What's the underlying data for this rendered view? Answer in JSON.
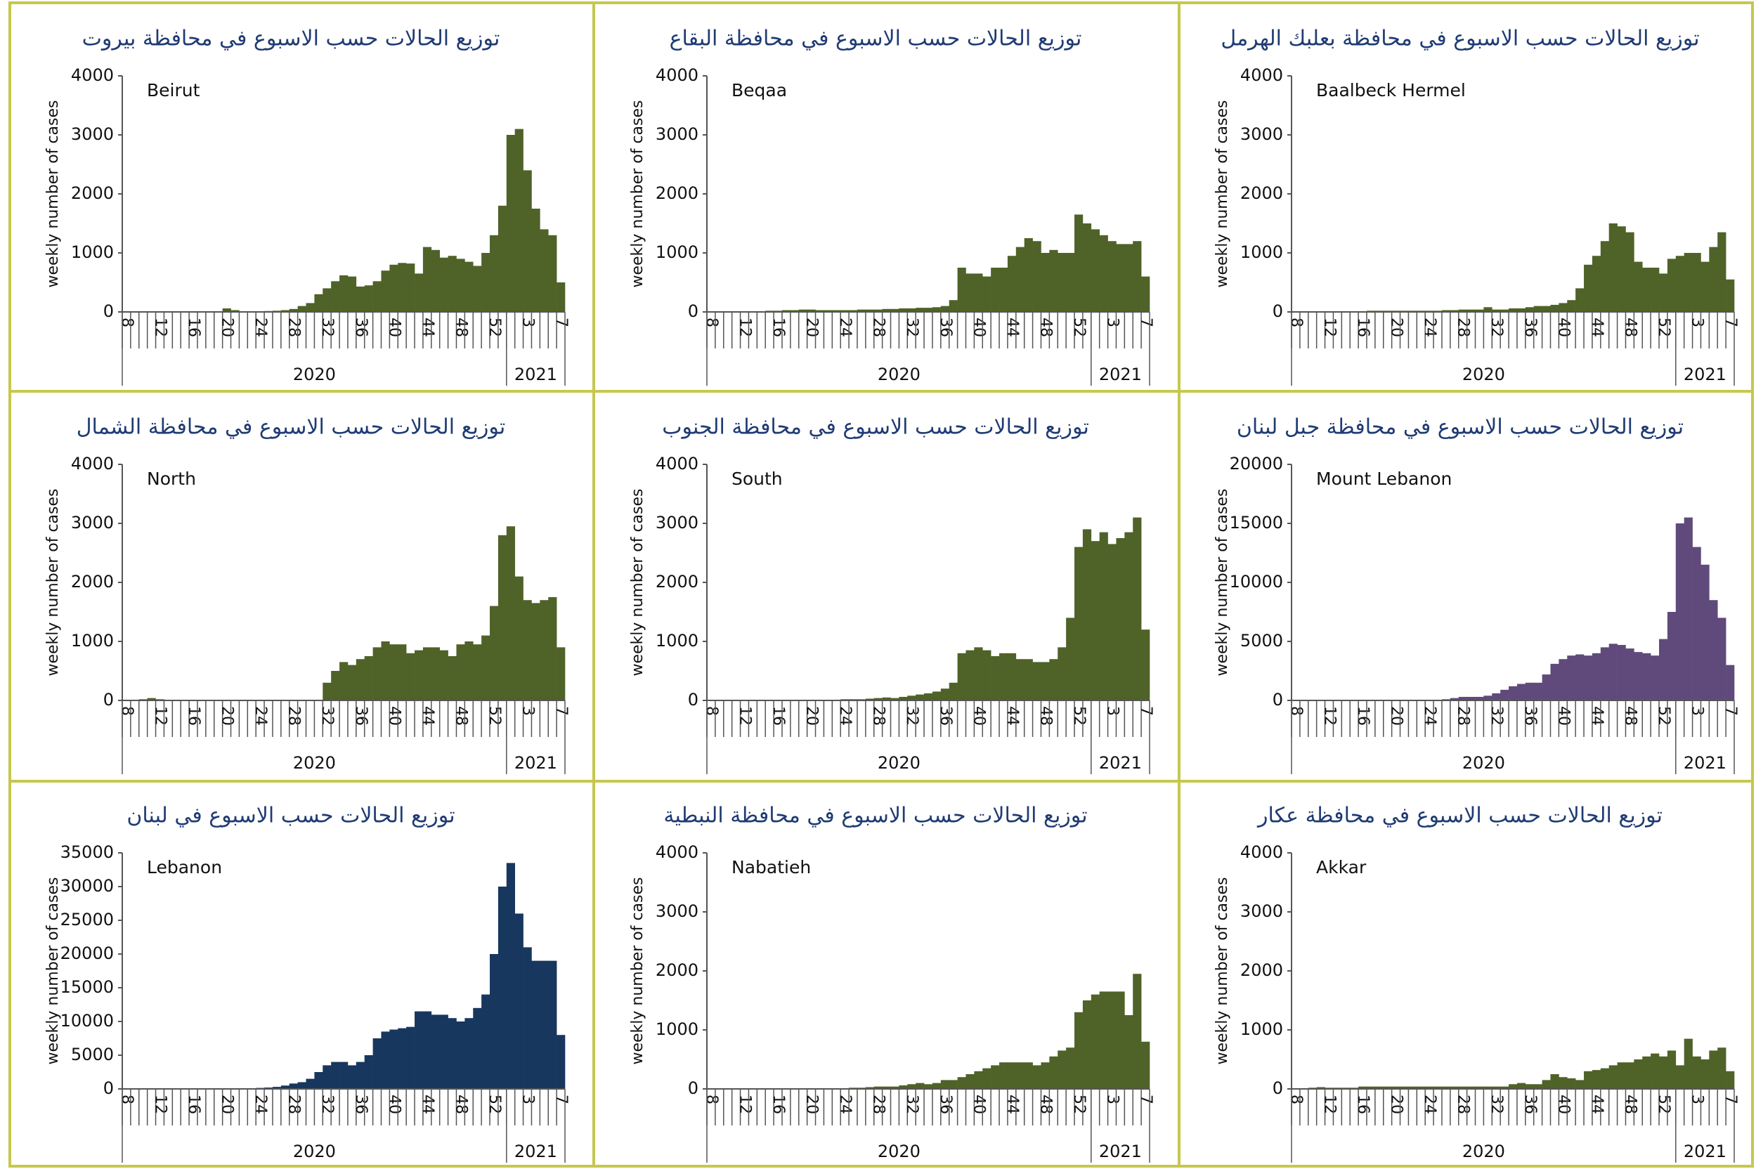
{
  "chart_data": [
    {
      "type": "bar",
      "title": "توزيع الحالات حسب الاسبوع في محافظة بيروت",
      "label": "Beirut",
      "ylabel": "weekly number of cases",
      "categories": [
        "8",
        null,
        null,
        null,
        "12",
        null,
        null,
        null,
        "16",
        null,
        null,
        null,
        "20",
        null,
        null,
        null,
        "24",
        null,
        null,
        null,
        "28",
        null,
        null,
        null,
        "32",
        null,
        null,
        null,
        "36",
        null,
        null,
        null,
        "40",
        null,
        null,
        null,
        "44",
        null,
        null,
        null,
        "48",
        null,
        null,
        null,
        "52",
        null,
        null,
        null,
        "3",
        null,
        null,
        null,
        "7"
      ],
      "groups": [
        "2020",
        "2021"
      ],
      "values": [
        0,
        0,
        5,
        5,
        5,
        5,
        5,
        5,
        10,
        10,
        10,
        10,
        60,
        30,
        10,
        10,
        10,
        15,
        20,
        30,
        50,
        100,
        150,
        300,
        400,
        520,
        620,
        600,
        430,
        450,
        520,
        700,
        800,
        830,
        820,
        650,
        1100,
        1050,
        920,
        950,
        900,
        850,
        780,
        1000,
        1300,
        1800,
        3000,
        3100,
        2400,
        1750,
        1400,
        1300,
        500
      ],
      "color": "#4f6228",
      "ylim": [
        0,
        4000
      ],
      "yticks": [
        0,
        1000,
        2000,
        3000,
        4000
      ]
    },
    {
      "type": "bar",
      "title": "توزيع الحالات حسب الاسبوع في محافظة البقاع",
      "label": "Beqaa",
      "ylabel": "weekly number of cases",
      "categories": [
        "8",
        null,
        null,
        null,
        "12",
        null,
        null,
        null,
        "16",
        null,
        null,
        null,
        "20",
        null,
        null,
        null,
        "24",
        null,
        null,
        null,
        "28",
        null,
        null,
        null,
        "32",
        null,
        null,
        null,
        "36",
        null,
        null,
        null,
        "40",
        null,
        null,
        null,
        "44",
        null,
        null,
        null,
        "48",
        null,
        null,
        null,
        "52",
        null,
        null,
        null,
        "3",
        null,
        null,
        null,
        "7"
      ],
      "groups": [
        "2020",
        "2021"
      ],
      "values": [
        0,
        0,
        5,
        5,
        10,
        10,
        10,
        20,
        20,
        30,
        30,
        40,
        40,
        30,
        30,
        30,
        30,
        30,
        40,
        40,
        40,
        50,
        50,
        60,
        60,
        70,
        70,
        80,
        100,
        200,
        750,
        650,
        650,
        600,
        750,
        750,
        950,
        1100,
        1250,
        1200,
        1000,
        1050,
        1000,
        1000,
        1650,
        1500,
        1400,
        1300,
        1200,
        1150,
        1150,
        1200,
        600
      ],
      "color": "#4f6228",
      "ylim": [
        0,
        4000
      ],
      "yticks": [
        0,
        1000,
        2000,
        3000,
        4000
      ]
    },
    {
      "type": "bar",
      "title": "توزيع الحالات حسب الاسبوع في محافظة بعلبك الهرمل",
      "label": "Baalbeck Hermel",
      "ylabel": "weekly number of cases",
      "categories": [
        "8",
        null,
        null,
        null,
        "12",
        null,
        null,
        null,
        "16",
        null,
        null,
        null,
        "20",
        null,
        null,
        null,
        "24",
        null,
        null,
        null,
        "28",
        null,
        null,
        null,
        "32",
        null,
        null,
        null,
        "36",
        null,
        null,
        null,
        "40",
        null,
        null,
        null,
        "44",
        null,
        null,
        null,
        "48",
        null,
        null,
        null,
        "52",
        null,
        null,
        null,
        "3",
        null,
        null,
        null,
        "7"
      ],
      "groups": [
        "2020",
        "2021"
      ],
      "values": [
        0,
        0,
        10,
        10,
        10,
        10,
        10,
        10,
        10,
        20,
        20,
        20,
        20,
        20,
        20,
        20,
        20,
        20,
        30,
        30,
        40,
        40,
        40,
        80,
        40,
        40,
        60,
        60,
        80,
        100,
        100,
        120,
        150,
        200,
        400,
        800,
        950,
        1200,
        1500,
        1450,
        1350,
        850,
        750,
        750,
        650,
        900,
        950,
        1000,
        1000,
        850,
        1100,
        1350,
        550
      ],
      "color": "#4f6228",
      "ylim": [
        0,
        4000
      ],
      "yticks": [
        0,
        1000,
        2000,
        3000,
        4000
      ]
    },
    {
      "type": "bar",
      "title": "توزيع الحالات حسب الاسبوع في محافظة الشمال",
      "label": "North",
      "ylabel": "weekly number of cases",
      "categories": [
        "8",
        null,
        null,
        null,
        "12",
        null,
        null,
        null,
        "16",
        null,
        null,
        null,
        "20",
        null,
        null,
        null,
        "24",
        null,
        null,
        null,
        "28",
        null,
        null,
        null,
        "32",
        null,
        null,
        null,
        "36",
        null,
        null,
        null,
        "40",
        null,
        null,
        null,
        "44",
        null,
        null,
        null,
        "48",
        null,
        null,
        null,
        "52",
        null,
        null,
        null,
        "3",
        null,
        null,
        null,
        "7"
      ],
      "groups": [
        "2020",
        "2021"
      ],
      "values": [
        0,
        0,
        20,
        40,
        20,
        10,
        10,
        10,
        10,
        10,
        10,
        10,
        10,
        10,
        10,
        10,
        10,
        10,
        10,
        10,
        10,
        10,
        10,
        10,
        300,
        500,
        650,
        600,
        700,
        750,
        900,
        1000,
        950,
        950,
        800,
        850,
        900,
        900,
        850,
        750,
        950,
        1000,
        950,
        1100,
        1600,
        2800,
        2950,
        2100,
        1700,
        1650,
        1700,
        1750,
        900
      ],
      "color": "#4f6228",
      "ylim": [
        0,
        4000
      ],
      "yticks": [
        0,
        1000,
        2000,
        3000,
        4000
      ]
    },
    {
      "type": "bar",
      "title": "توزيع الحالات حسب الاسبوع في محافظة الجنوب",
      "label": "South",
      "ylabel": "weekly number of cases",
      "categories": [
        "8",
        null,
        null,
        null,
        "12",
        null,
        null,
        null,
        "16",
        null,
        null,
        null,
        "20",
        null,
        null,
        null,
        "24",
        null,
        null,
        null,
        "28",
        null,
        null,
        null,
        "32",
        null,
        null,
        null,
        "36",
        null,
        null,
        null,
        "40",
        null,
        null,
        null,
        "44",
        null,
        null,
        null,
        "48",
        null,
        null,
        null,
        "52",
        null,
        null,
        null,
        "3",
        null,
        null,
        null,
        "7"
      ],
      "groups": [
        "2020",
        "2021"
      ],
      "values": [
        0,
        0,
        10,
        10,
        10,
        10,
        10,
        10,
        10,
        10,
        10,
        10,
        10,
        10,
        10,
        10,
        20,
        20,
        20,
        30,
        40,
        50,
        40,
        60,
        80,
        100,
        120,
        150,
        200,
        300,
        800,
        850,
        900,
        850,
        750,
        800,
        800,
        700,
        700,
        650,
        650,
        700,
        900,
        1400,
        2600,
        2900,
        2700,
        2850,
        2650,
        2750,
        2850,
        3100,
        1200
      ],
      "color": "#4f6228",
      "ylim": [
        0,
        4000
      ],
      "yticks": [
        0,
        1000,
        2000,
        3000,
        4000
      ]
    },
    {
      "type": "bar",
      "title": "توزيع الحالات حسب الاسبوع في محافظة جبل لبنان",
      "label": "Mount Lebanon",
      "ylabel": "weekly number of cases",
      "categories": [
        "8",
        null,
        null,
        null,
        "12",
        null,
        null,
        null,
        "16",
        null,
        null,
        null,
        "20",
        null,
        null,
        null,
        "24",
        null,
        null,
        null,
        "28",
        null,
        null,
        null,
        "32",
        null,
        null,
        null,
        "36",
        null,
        null,
        null,
        "40",
        null,
        null,
        null,
        "44",
        null,
        null,
        null,
        "48",
        null,
        null,
        null,
        "52",
        null,
        null,
        null,
        "3",
        null,
        null,
        null,
        "7"
      ],
      "groups": [
        "2020",
        "2021"
      ],
      "values": [
        0,
        0,
        0,
        0,
        0,
        0,
        0,
        0,
        0,
        0,
        0,
        0,
        0,
        0,
        0,
        0,
        50,
        50,
        100,
        200,
        300,
        300,
        300,
        400,
        600,
        900,
        1200,
        1400,
        1500,
        1500,
        2200,
        3100,
        3500,
        3800,
        3900,
        3800,
        4000,
        4500,
        4800,
        4700,
        4400,
        4100,
        4000,
        3800,
        5200,
        7500,
        15000,
        15500,
        13000,
        11500,
        8500,
        7000,
        3000
      ],
      "color": "#604a7b",
      "ylim": [
        0,
        20000
      ],
      "yticks": [
        0,
        5000,
        10000,
        15000,
        20000
      ]
    },
    {
      "type": "bar",
      "title": "توزيع الحالات حسب الاسبوع في لبنان",
      "label": "Lebanon",
      "ylabel": "weekly number of cases",
      "categories": [
        "8",
        null,
        null,
        null,
        "12",
        null,
        null,
        null,
        "16",
        null,
        null,
        null,
        "20",
        null,
        null,
        null,
        "24",
        null,
        null,
        null,
        "28",
        null,
        null,
        null,
        "32",
        null,
        null,
        null,
        "36",
        null,
        null,
        null,
        "40",
        null,
        null,
        null,
        "44",
        null,
        null,
        null,
        "48",
        null,
        null,
        null,
        "52",
        null,
        null,
        null,
        "3",
        null,
        null,
        null,
        "7"
      ],
      "groups": [
        "2020",
        "2021"
      ],
      "values": [
        0,
        0,
        50,
        50,
        50,
        50,
        50,
        50,
        50,
        50,
        100,
        100,
        100,
        100,
        100,
        100,
        150,
        200,
        300,
        500,
        800,
        1000,
        1500,
        2500,
        3500,
        4000,
        4000,
        3500,
        4000,
        5000,
        7500,
        8500,
        8800,
        9000,
        9200,
        11500,
        11500,
        11000,
        11000,
        10500,
        10000,
        10500,
        12000,
        14000,
        20000,
        30000,
        33500,
        26000,
        21000,
        19000,
        19000,
        19000,
        8000
      ],
      "color": "#17375e",
      "ylim": [
        0,
        35000
      ],
      "yticks": [
        0,
        5000,
        10000,
        15000,
        20000,
        25000,
        30000,
        35000
      ]
    },
    {
      "type": "bar",
      "title": "توزيع الحالات حسب الاسبوع في محافظة النبطية",
      "label": "Nabatieh",
      "ylabel": "weekly number of cases",
      "categories": [
        "8",
        null,
        null,
        null,
        "12",
        null,
        null,
        null,
        "16",
        null,
        null,
        null,
        "20",
        null,
        null,
        null,
        "24",
        null,
        null,
        null,
        "28",
        null,
        null,
        null,
        "32",
        null,
        null,
        null,
        "36",
        null,
        null,
        null,
        "40",
        null,
        null,
        null,
        "44",
        null,
        null,
        null,
        "48",
        null,
        null,
        null,
        "52",
        null,
        null,
        null,
        "3",
        null,
        null,
        null,
        "7"
      ],
      "groups": [
        "2020",
        "2021"
      ],
      "values": [
        0,
        0,
        0,
        0,
        0,
        10,
        10,
        10,
        10,
        10,
        10,
        10,
        10,
        10,
        10,
        10,
        10,
        20,
        20,
        30,
        40,
        40,
        40,
        60,
        80,
        100,
        80,
        100,
        150,
        150,
        200,
        250,
        300,
        350,
        400,
        450,
        450,
        450,
        450,
        400,
        450,
        550,
        650,
        700,
        1300,
        1500,
        1600,
        1650,
        1650,
        1650,
        1250,
        1950,
        800
      ],
      "color": "#4f6228",
      "ylim": [
        0,
        4000
      ],
      "yticks": [
        0,
        1000,
        2000,
        3000,
        4000
      ]
    },
    {
      "type": "bar",
      "title": "توزيع الحالات حسب الاسبوع في محافظة عكار",
      "label": "Akkar",
      "ylabel": "weekly number of cases",
      "categories": [
        "8",
        null,
        null,
        null,
        "12",
        null,
        null,
        null,
        "16",
        null,
        null,
        null,
        "20",
        null,
        null,
        null,
        "24",
        null,
        null,
        null,
        "28",
        null,
        null,
        null,
        "32",
        null,
        null,
        null,
        "36",
        null,
        null,
        null,
        "40",
        null,
        null,
        null,
        "44",
        null,
        null,
        null,
        "48",
        null,
        null,
        null,
        "52",
        null,
        null,
        null,
        "3",
        null,
        null,
        null,
        "7"
      ],
      "groups": [
        "2020",
        "2021"
      ],
      "values": [
        0,
        0,
        20,
        30,
        20,
        20,
        20,
        20,
        40,
        40,
        40,
        40,
        40,
        40,
        40,
        40,
        40,
        40,
        40,
        40,
        40,
        40,
        40,
        40,
        40,
        40,
        80,
        100,
        80,
        80,
        150,
        250,
        200,
        180,
        150,
        300,
        320,
        350,
        400,
        450,
        450,
        500,
        550,
        600,
        550,
        650,
        400,
        850,
        550,
        500,
        650,
        700,
        300
      ],
      "color": "#4f6228",
      "ylim": [
        0,
        4000
      ],
      "yticks": [
        0,
        1000,
        2000,
        3000,
        4000
      ]
    }
  ]
}
